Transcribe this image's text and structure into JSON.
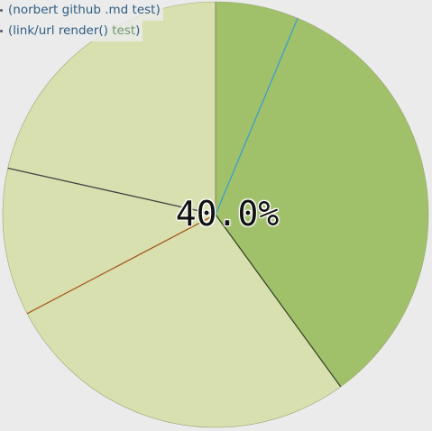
{
  "chart_data": {
    "type": "pie",
    "center_label": "40.0%",
    "slices": [
      {
        "name": "(norbert github .md test)",
        "value": 6.3,
        "color": "#a0c06a",
        "edge": "#3aa0c8"
      },
      {
        "name": "",
        "value": 33.7,
        "color": "#a0c06a",
        "edge": "#3a4a2a"
      },
      {
        "name": "",
        "value": 27.3,
        "color": "#d8e0b0",
        "edge": "#a65a1a"
      },
      {
        "name": "",
        "value": 11.2,
        "color": "#d8e0b0",
        "edge": "#444444"
      },
      {
        "name": "(link/url render() test)",
        "value": 21.5,
        "color": "#d8e0b0",
        "edge": "#888888"
      }
    ],
    "legend": [
      {
        "text": "(norbert github .md test)",
        "text_muted": ""
      },
      {
        "text": "(link/url render(",
        "text_tail": ")",
        "text_muted": " test",
        "text_close": ")"
      }
    ]
  }
}
